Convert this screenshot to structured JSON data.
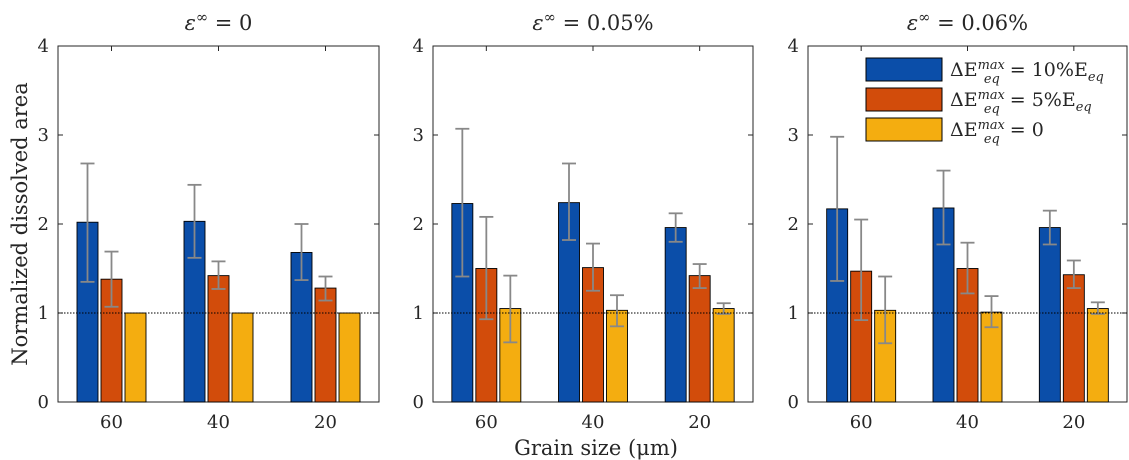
{
  "figure": {
    "ylabel": "Normalized dissolved area",
    "xlabel": "Grain size (μm)"
  },
  "legend": {
    "entries": [
      {
        "label": "ΔE_eq^max = 10%E_eq",
        "color": "#0b4ea9"
      },
      {
        "label": "ΔE_eq^max = 5%E_eq",
        "color": "#d24c0b"
      },
      {
        "label": "ΔE_eq^max = 0",
        "color": "#f4ad10"
      }
    ]
  },
  "colors": {
    "series": [
      "#0b4ea9",
      "#d24c0b",
      "#f4ad10"
    ],
    "errorbar": "#888888",
    "axis": "#262626",
    "reference_line": "#000000"
  },
  "chart_data": [
    {
      "type": "bar",
      "title": "ε^∞ = 0",
      "categories": [
        "60",
        "40",
        "20"
      ],
      "ylim": [
        0,
        4
      ],
      "yticks": [
        0,
        1,
        2,
        3,
        4
      ],
      "reference_line": 1,
      "series": [
        {
          "name": "ΔE_eq^max = 10%E_eq",
          "values": [
            2.02,
            2.03,
            1.68
          ],
          "err_low": [
            1.35,
            1.62,
            1.37
          ],
          "err_high": [
            2.68,
            2.44,
            2.0
          ]
        },
        {
          "name": "ΔE_eq^max = 5%E_eq",
          "values": [
            1.38,
            1.42,
            1.28
          ],
          "err_low": [
            1.07,
            1.27,
            1.14
          ],
          "err_high": [
            1.69,
            1.58,
            1.41
          ]
        },
        {
          "name": "ΔE_eq^max = 0",
          "values": [
            1.0,
            1.0,
            1.0
          ]
        }
      ]
    },
    {
      "type": "bar",
      "title": "ε^∞ = 0.05%",
      "categories": [
        "60",
        "40",
        "20"
      ],
      "ylim": [
        0,
        4
      ],
      "yticks": [
        0,
        1,
        2,
        3,
        4
      ],
      "reference_line": 1,
      "series": [
        {
          "name": "ΔE_eq^max = 10%E_eq",
          "values": [
            2.23,
            2.24,
            1.96
          ],
          "err_low": [
            1.41,
            1.82,
            1.8
          ],
          "err_high": [
            3.07,
            2.68,
            2.12
          ]
        },
        {
          "name": "ΔE_eq^max = 5%E_eq",
          "values": [
            1.5,
            1.51,
            1.42
          ],
          "err_low": [
            0.93,
            1.25,
            1.28
          ],
          "err_high": [
            2.08,
            1.78,
            1.55
          ]
        },
        {
          "name": "ΔE_eq^max = 0",
          "values": [
            1.05,
            1.03,
            1.05
          ],
          "err_low": [
            0.67,
            0.85,
            0.99
          ],
          "err_high": [
            1.42,
            1.2,
            1.11
          ]
        }
      ]
    },
    {
      "type": "bar",
      "title": "ε^∞ = 0.06%",
      "categories": [
        "60",
        "40",
        "20"
      ],
      "ylim": [
        0,
        4
      ],
      "yticks": [
        0,
        1,
        2,
        3,
        4
      ],
      "reference_line": 1,
      "series": [
        {
          "name": "ΔE_eq^max = 10%E_eq",
          "values": [
            2.17,
            2.18,
            1.96
          ],
          "err_low": [
            1.36,
            1.77,
            1.77
          ],
          "err_high": [
            2.98,
            2.6,
            2.15
          ]
        },
        {
          "name": "ΔE_eq^max = 5%E_eq",
          "values": [
            1.47,
            1.5,
            1.43
          ],
          "err_low": [
            0.92,
            1.22,
            1.28
          ],
          "err_high": [
            2.05,
            1.79,
            1.59
          ]
        },
        {
          "name": "ΔE_eq^max = 0",
          "values": [
            1.03,
            1.01,
            1.05
          ],
          "err_low": [
            0.66,
            0.84,
            0.99
          ],
          "err_high": [
            1.41,
            1.19,
            1.12
          ]
        }
      ]
    }
  ]
}
